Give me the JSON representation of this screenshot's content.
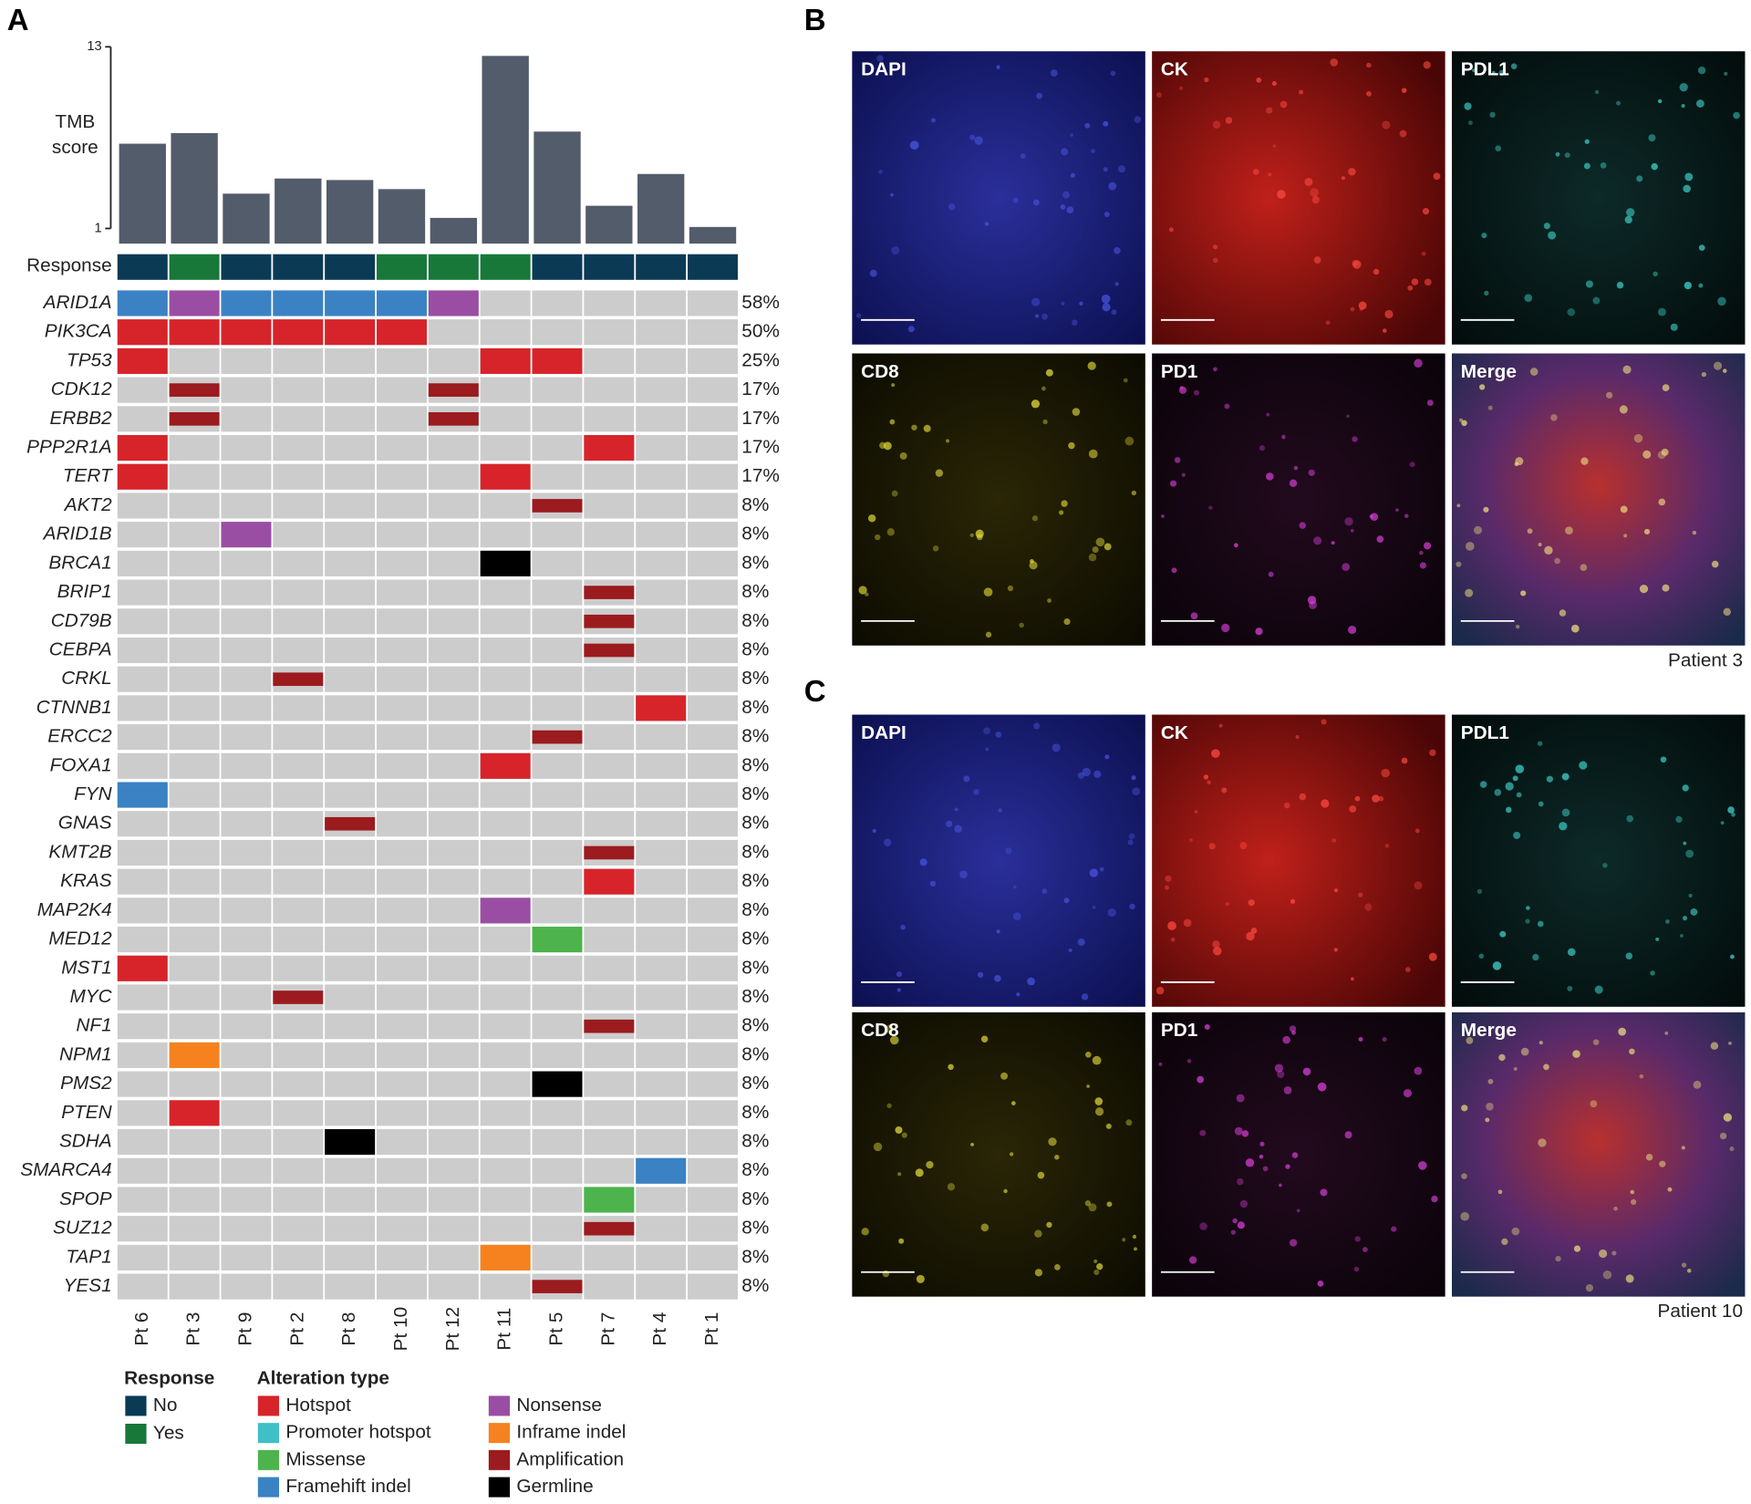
{
  "panel_labels": [
    "A",
    "B",
    "C"
  ],
  "chart_data": {
    "type": "bar",
    "y_label_lines": [
      "TMB",
      "score"
    ],
    "categories": [
      "Pt 6",
      "Pt 3",
      "Pt 9",
      "Pt 2",
      "Pt 8",
      "Pt 10",
      "Pt 12",
      "Pt 11",
      "Pt 5",
      "Pt 7",
      "Pt 4",
      "Pt 1"
    ],
    "values": [
      6.6,
      7.3,
      3.3,
      4.3,
      4.2,
      3.6,
      1.7,
      12.4,
      7.4,
      2.5,
      4.6,
      1.1
    ],
    "color": "#535c6a",
    "ylim": [
      0,
      13
    ],
    "yticks": [
      1,
      13
    ]
  },
  "oncoprint": {
    "response_label": "Response",
    "response": [
      0,
      1,
      0,
      0,
      0,
      1,
      1,
      1,
      0,
      0,
      0,
      0
    ],
    "genes": [
      "ARID1A",
      "PIK3CA",
      "TP53",
      "CDK12",
      "ERBB2",
      "PPP2R1A",
      "TERT",
      "AKT2",
      "ARID1B",
      "BRCA1",
      "BRIP1",
      "CD79B",
      "CEBPA",
      "CRKL",
      "CTNNB1",
      "ERCC2",
      "FOXA1",
      "FYN",
      "GNAS",
      "KMT2B",
      "KRAS",
      "MAP2K4",
      "MED12",
      "MST1",
      "MYC",
      "NF1",
      "NPM1",
      "PMS2",
      "PTEN",
      "SDHA",
      "SMARCA4",
      "SPOP",
      "SUZ12",
      "TAP1",
      "YES1"
    ],
    "frequencies": [
      "58%",
      "50%",
      "25%",
      "17%",
      "17%",
      "17%",
      "17%",
      "8%",
      "8%",
      "8%",
      "8%",
      "8%",
      "8%",
      "8%",
      "8%",
      "8%",
      "8%",
      "8%",
      "8%",
      "8%",
      "8%",
      "8%",
      "8%",
      "8%",
      "8%",
      "8%",
      "8%",
      "8%",
      "8%",
      "8%",
      "8%",
      "8%",
      "8%",
      "8%",
      "8%"
    ],
    "empty_color": "#cccccc",
    "alterations": [
      [
        0,
        0,
        3
      ],
      [
        0,
        1,
        4
      ],
      [
        0,
        2,
        3
      ],
      [
        0,
        3,
        3
      ],
      [
        0,
        4,
        3
      ],
      [
        0,
        5,
        3
      ],
      [
        0,
        6,
        4
      ],
      [
        1,
        0,
        0
      ],
      [
        1,
        1,
        0
      ],
      [
        1,
        2,
        0
      ],
      [
        1,
        3,
        0
      ],
      [
        1,
        4,
        0
      ],
      [
        1,
        5,
        0
      ],
      [
        2,
        0,
        0
      ],
      [
        2,
        7,
        0
      ],
      [
        2,
        8,
        0
      ],
      [
        3,
        1,
        6
      ],
      [
        3,
        6,
        6
      ],
      [
        4,
        1,
        6
      ],
      [
        4,
        6,
        6
      ],
      [
        5,
        0,
        0
      ],
      [
        5,
        9,
        0
      ],
      [
        6,
        0,
        0
      ],
      [
        6,
        7,
        0
      ],
      [
        7,
        8,
        6
      ],
      [
        8,
        2,
        4
      ],
      [
        9,
        7,
        7
      ],
      [
        10,
        9,
        6
      ],
      [
        11,
        9,
        6
      ],
      [
        12,
        9,
        6
      ],
      [
        13,
        3,
        6
      ],
      [
        14,
        10,
        0
      ],
      [
        15,
        8,
        6
      ],
      [
        16,
        7,
        0
      ],
      [
        17,
        0,
        3
      ],
      [
        18,
        4,
        6
      ],
      [
        19,
        9,
        6
      ],
      [
        20,
        9,
        0
      ],
      [
        21,
        7,
        4
      ],
      [
        22,
        8,
        2
      ],
      [
        23,
        0,
        0
      ],
      [
        24,
        3,
        6
      ],
      [
        25,
        9,
        6
      ],
      [
        26,
        1,
        5
      ],
      [
        27,
        8,
        7
      ],
      [
        28,
        1,
        0
      ],
      [
        29,
        4,
        7
      ],
      [
        30,
        10,
        3
      ],
      [
        31,
        9,
        2
      ],
      [
        32,
        9,
        6
      ],
      [
        33,
        7,
        5
      ],
      [
        34,
        8,
        6
      ]
    ]
  },
  "legend": {
    "response_title": "Response",
    "response_items": [
      {
        "name": "No",
        "color": "#0b3a55"
      },
      {
        "name": "Yes",
        "color": "#17783a"
      }
    ],
    "alteration_title": "Alteration type",
    "alteration_items": [
      {
        "name": "Hotspot",
        "color": "#d7242a"
      },
      {
        "name": "Promoter hotspot",
        "color": "#3fbfc6"
      },
      {
        "name": "Missense",
        "color": "#4db34c"
      },
      {
        "name": "Framehift indel",
        "color": "#3a82c4"
      },
      {
        "name": "Nonsense",
        "color": "#9a4ea3"
      },
      {
        "name": "Inframe indel",
        "color": "#f5821f"
      },
      {
        "name": "Amplification",
        "color": "#9b1b1e",
        "thin": true
      },
      {
        "name": "Germline",
        "color": "#000000"
      }
    ]
  },
  "images": [
    {},
    {
      "channels": [
        "DAPI",
        "CK",
        "PDL1",
        "CD8",
        "PD1",
        "Merge"
      ],
      "caption": "Patient 3"
    },
    {
      "channels": [
        "DAPI",
        "CK",
        "PDL1",
        "CD8",
        "PD1",
        "Merge"
      ],
      "caption": "Patient 10"
    }
  ]
}
